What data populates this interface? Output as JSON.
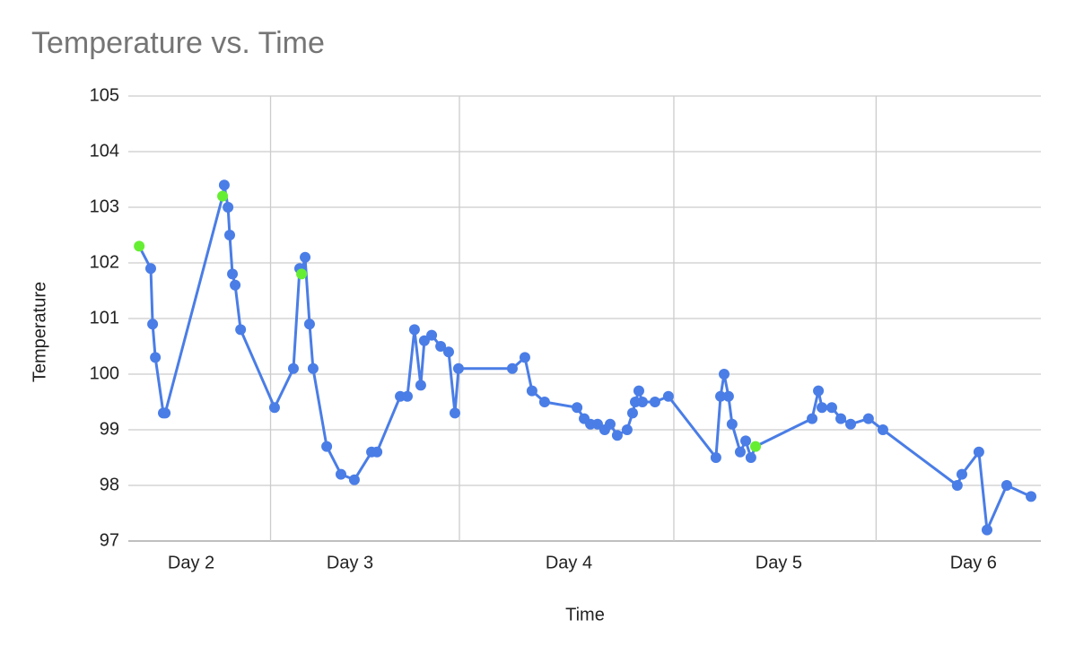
{
  "chart_data": {
    "type": "line",
    "title": "Temperature vs. Time",
    "x_label": "Time",
    "y_label": "Temperature",
    "x": [
      1.752,
      1.807,
      1.816,
      1.829,
      1.867,
      1.876,
      2.15,
      2.158,
      2.176,
      2.184,
      2.197,
      2.21,
      2.236,
      2.398,
      2.488,
      2.518,
      2.527,
      2.544,
      2.565,
      2.582,
      2.647,
      2.715,
      2.779,
      2.861,
      2.887,
      2.998,
      3.032,
      3.066,
      3.096,
      3.113,
      3.148,
      3.191,
      3.229,
      3.259,
      3.276,
      3.533,
      3.593,
      3.627,
      3.687,
      3.842,
      3.876,
      3.906,
      3.94,
      3.974,
      4.0,
      4.034,
      4.081,
      4.107,
      4.12,
      4.137,
      4.154,
      4.214,
      4.278,
      4.505,
      4.527,
      4.544,
      4.565,
      4.582,
      4.621,
      4.647,
      4.672,
      4.694,
      4.964,
      4.994,
      5.011,
      5.058,
      5.101,
      5.148,
      5.233,
      5.302,
      5.657,
      5.679,
      5.76,
      5.799,
      5.893,
      6.009
    ],
    "series": [
      {
        "name": "Temperature",
        "color": "#4a7de6",
        "values": [
          102.3,
          101.9,
          100.9,
          100.3,
          99.3,
          99.3,
          103.2,
          103.4,
          103.0,
          102.5,
          101.8,
          101.6,
          100.8,
          99.4,
          100.1,
          101.9,
          101.8,
          102.1,
          100.9,
          100.1,
          98.7,
          98.2,
          98.1,
          98.6,
          98.6,
          99.6,
          99.6,
          100.8,
          99.8,
          100.6,
          100.7,
          100.5,
          100.4,
          99.3,
          100.1,
          100.1,
          100.3,
          99.7,
          99.5,
          99.4,
          99.2,
          99.1,
          99.1,
          99.0,
          99.1,
          98.9,
          99.0,
          99.3,
          99.5,
          99.7,
          99.5,
          99.5,
          99.6,
          98.5,
          99.6,
          100.0,
          99.6,
          99.1,
          98.6,
          98.8,
          98.5,
          98.7,
          99.2,
          99.7,
          99.4,
          99.4,
          99.2,
          99.1,
          99.2,
          99.0,
          98.0,
          98.2,
          98.6,
          97.2,
          98.0,
          97.8
        ]
      }
    ],
    "highlight_color": "#66ee33",
    "highlight_points": [
      0,
      6,
      16,
      61
    ],
    "xlim": [
      1.7,
      6.056
    ],
    "xticks": [
      {
        "value": 2.0,
        "label": "Day 2"
      },
      {
        "value": 2.758,
        "label": "Day 3"
      },
      {
        "value": 3.803,
        "label": "Day 4"
      },
      {
        "value": 4.805,
        "label": "Day 5"
      },
      {
        "value": 5.734,
        "label": "Day 6"
      }
    ],
    "ylim": [
      97,
      105
    ],
    "yticks": [
      97,
      98,
      99,
      100,
      101,
      102,
      103,
      104,
      105
    ],
    "grid": true
  }
}
